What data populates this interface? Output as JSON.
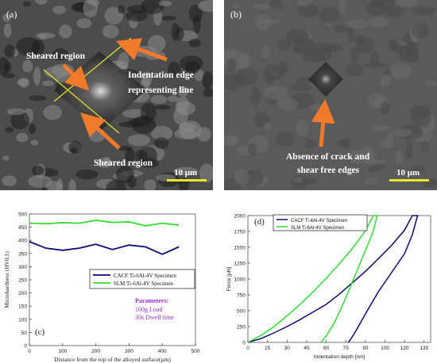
{
  "panel_a": {
    "label": "(a)",
    "annotations": [
      "Sheared region",
      "Indentation edge",
      "representing line",
      "Sheared region"
    ],
    "scale_bar": "10 μm"
  },
  "panel_b": {
    "label": "(b)",
    "annotations": [
      "Absence of crack and",
      "shear free edges"
    ],
    "scale_bar": "10 μm"
  },
  "colors": {
    "arrow": "#f07a2a",
    "yellow": "#e8e82a",
    "navy": "#0a0a78",
    "green": "#33dd33",
    "purple": "#9b2fd0"
  },
  "chart_data": [
    {
      "type": "line",
      "panel_label": "(c)",
      "xlabel": "Distance from the top of the alloyed surface(μm)",
      "ylabel": "Microhardness (HV0.1)",
      "xlim": [
        0,
        500
      ],
      "ylim": [
        0,
        500
      ],
      "x_ticks": [
        0,
        100,
        200,
        300,
        400,
        500
      ],
      "y_ticks": [
        0,
        50,
        100,
        150,
        200,
        250,
        300,
        350,
        400,
        450,
        500
      ],
      "series": [
        {
          "name": "CACF Ti-6Al-4V Specimen",
          "color": "#0a0a78",
          "x": [
            0,
            50,
            100,
            150,
            200,
            250,
            300,
            350,
            400,
            450
          ],
          "y": [
            395,
            370,
            362,
            370,
            385,
            365,
            382,
            375,
            347,
            375
          ]
        },
        {
          "name": "SLM Ti-6Al-4V Specimen",
          "color": "#33dd33",
          "x": [
            0,
            50,
            100,
            150,
            200,
            250,
            300,
            350,
            400,
            450
          ],
          "y": [
            465,
            463,
            467,
            465,
            476,
            468,
            470,
            455,
            465,
            458
          ]
        }
      ],
      "annotation": {
        "title": "Parameters:",
        "lines": [
          "100g  Load",
          "30s  Dwell time"
        ]
      },
      "legend_position": "center-right"
    },
    {
      "type": "line",
      "panel_label": "(d)",
      "xlabel": "Indentation depth [nm]",
      "ylabel": "Force [μN]",
      "xlim": [
        0,
        140
      ],
      "ylim": [
        0,
        2000
      ],
      "x_ticks": [
        0,
        15,
        30,
        45,
        60,
        75,
        90,
        105,
        120,
        135
      ],
      "y_ticks": [
        0,
        250,
        500,
        750,
        1000,
        1250,
        1500,
        1750,
        2000
      ],
      "series": [
        {
          "name": "CACF Ti-6Al-4V Specimen",
          "color": "#0a0a78",
          "x": [
            0,
            10,
            20,
            30,
            40,
            50,
            60,
            70,
            80,
            90,
            100,
            110,
            120,
            126,
            130,
            126,
            120,
            110,
            100,
            92,
            86,
            81,
            77
          ],
          "y": [
            0,
            60,
            150,
            250,
            360,
            480,
            600,
            760,
            940,
            1120,
            1320,
            1530,
            1770,
            2000,
            2000,
            1700,
            1400,
            1100,
            800,
            520,
            300,
            120,
            0
          ]
        },
        {
          "name": "SLM Ti-6Al-4V Specimen",
          "color": "#33dd33",
          "x": [
            0,
            10,
            20,
            30,
            40,
            50,
            60,
            70,
            80,
            90,
            96,
            99,
            96,
            90,
            84,
            78,
            72,
            66,
            60,
            56
          ],
          "y": [
            0,
            110,
            250,
            420,
            600,
            800,
            1010,
            1240,
            1480,
            1760,
            2000,
            2000,
            1750,
            1450,
            1150,
            850,
            560,
            300,
            100,
            0
          ]
        }
      ],
      "legend_position": "top-left"
    }
  ]
}
